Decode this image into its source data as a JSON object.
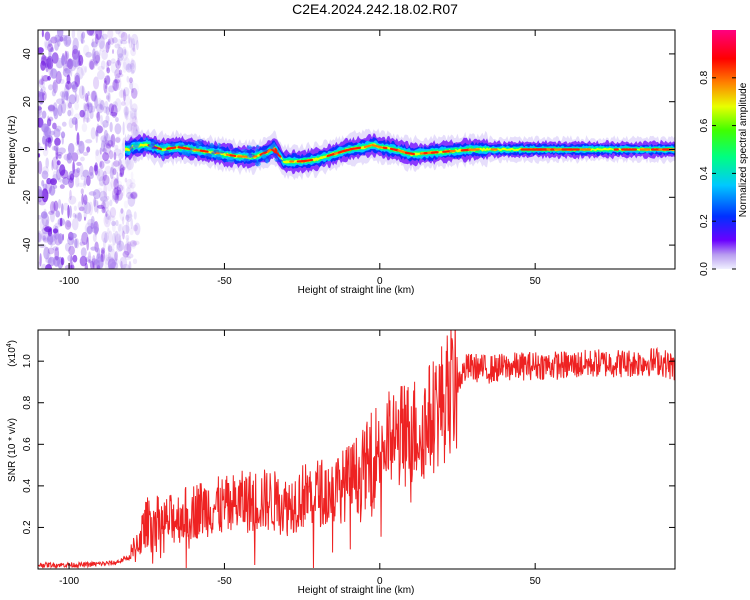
{
  "title": "C2E4.2024.242.18.02.R07",
  "chart_data": [
    {
      "type": "heatmap",
      "name": "spectrogram",
      "xlabel": "Height of straight line (km)",
      "ylabel": "Frequency (Hz)",
      "xlim": [
        -110,
        95
      ],
      "ylim": [
        -50,
        50
      ],
      "xticks": [
        -100,
        -50,
        0,
        50
      ],
      "yticks": [
        -40,
        -20,
        0,
        20,
        40
      ],
      "ridge_trace": {
        "x": [
          -80,
          -75,
          -70,
          -65,
          -60,
          -55,
          -50,
          -45,
          -40,
          -36,
          -34,
          -31,
          -28,
          -25,
          -20,
          -15,
          -10,
          -5,
          -2,
          0,
          5,
          10,
          20,
          30,
          40,
          60,
          80,
          95
        ],
        "frequency": [
          1,
          2,
          0,
          1,
          0,
          -1,
          -2,
          -3,
          -3,
          -1,
          1,
          -5,
          -5,
          -5,
          -4,
          -2,
          0,
          1,
          2,
          1,
          0,
          -2,
          -1,
          0,
          0,
          0,
          0,
          0
        ]
      },
      "colorbar": {
        "label": "Normalized spectral amplitude",
        "range": [
          0,
          1
        ],
        "ticks": [
          "0.0",
          "0.2",
          "0.4",
          "0.6",
          "0.8"
        ]
      }
    },
    {
      "type": "line",
      "name": "snr",
      "xlabel": "Height of straight line (km)",
      "ylabel": "SNR (10 * v/v)",
      "scale_label": "(x10",
      "scale_exponent": "4",
      "xlim": [
        -110,
        95
      ],
      "ylim": [
        0,
        1.15
      ],
      "xticks": [
        -100,
        -50,
        0,
        50
      ],
      "yticks": [
        "0.2",
        "0.4",
        "0.6",
        "0.8",
        "1.0"
      ],
      "color": "#ee2222",
      "series": [
        {
          "name": "SNR",
          "x": [
            -110,
            -95,
            -85,
            -80,
            -77,
            -74,
            -70,
            -65,
            -60,
            -55,
            -50,
            -45,
            -40,
            -35,
            -30,
            -25,
            -20,
            -15,
            -10,
            -5,
            0,
            5,
            10,
            15,
            20,
            25,
            28,
            30,
            35,
            40,
            50,
            60,
            70,
            80,
            90,
            95
          ],
          "values": [
            0.02,
            0.02,
            0.03,
            0.06,
            0.16,
            0.25,
            0.22,
            0.25,
            0.28,
            0.3,
            0.3,
            0.32,
            0.33,
            0.33,
            0.3,
            0.35,
            0.37,
            0.37,
            0.42,
            0.48,
            0.6,
            0.63,
            0.66,
            0.7,
            0.8,
            0.9,
            0.97,
            0.97,
            0.96,
            0.97,
            0.98,
            0.98,
            0.99,
            0.99,
            1.0,
            0.97
          ]
        }
      ]
    }
  ]
}
